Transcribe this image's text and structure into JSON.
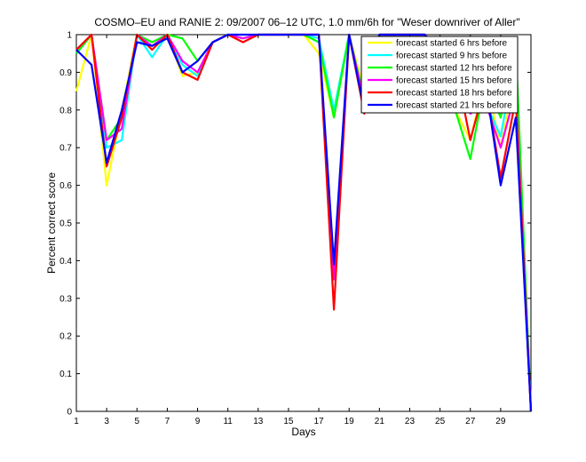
{
  "chart_data": {
    "type": "line",
    "title": "COSMO–EU and RANIE 2: 09/2007 06–12 UTC, 1.0 mm/6h for \"Weser downriver of Aller\"",
    "xlabel": "Days",
    "ylabel": "Percent correct score",
    "xlim": [
      1,
      31
    ],
    "ylim": [
      0,
      1
    ],
    "x_ticks": [
      "1",
      "3",
      "5",
      "7",
      "9",
      "11",
      "13",
      "15",
      "17",
      "19",
      "21",
      "23",
      "25",
      "27",
      "29"
    ],
    "y_ticks": [
      "0",
      "0.1",
      "0.2",
      "0.3",
      "0.4",
      "0.5",
      "0.6",
      "0.7",
      "0.8",
      "0.9",
      "1"
    ],
    "grid": false,
    "legend_position": "top-right",
    "x": [
      1,
      2,
      3,
      4,
      5,
      6,
      7,
      8,
      9,
      10,
      11,
      12,
      13,
      14,
      15,
      16,
      17,
      18,
      19,
      20,
      21,
      22,
      23,
      24,
      25,
      26,
      27,
      28,
      29,
      30,
      31
    ],
    "series": [
      {
        "name": "forecast started 6 hrs before",
        "color": "#ffff00",
        "values": [
          0.85,
          1.0,
          0.6,
          0.8,
          1.0,
          0.97,
          1.0,
          0.89,
          0.9,
          0.98,
          1.0,
          0.99,
          1.0,
          1.0,
          1.0,
          1.0,
          0.95,
          0.78,
          1.0,
          0.85,
          1.0,
          1.0,
          1.0,
          1.0,
          0.95,
          0.8,
          0.72,
          0.89,
          0.7,
          0.9,
          0.0
        ]
      },
      {
        "name": "forecast started 9 hrs before",
        "color": "#00ffff",
        "values": [
          0.95,
          1.0,
          0.7,
          0.72,
          1.0,
          0.94,
          1.0,
          0.92,
          0.89,
          0.98,
          1.0,
          0.99,
          1.0,
          1.0,
          1.0,
          1.0,
          0.99,
          0.8,
          1.0,
          0.83,
          1.0,
          1.0,
          1.0,
          1.0,
          0.93,
          0.86,
          0.85,
          0.82,
          0.73,
          0.95,
          0.0
        ]
      },
      {
        "name": "forecast started 12 hrs before",
        "color": "#00ff00",
        "values": [
          0.95,
          1.0,
          0.72,
          0.78,
          1.0,
          0.98,
          1.0,
          0.99,
          0.93,
          0.98,
          1.0,
          0.99,
          1.0,
          1.0,
          1.0,
          1.0,
          0.98,
          0.78,
          1.0,
          0.83,
          1.0,
          1.0,
          1.0,
          1.0,
          0.93,
          0.8,
          0.67,
          0.88,
          0.78,
          0.97,
          0.0
        ]
      },
      {
        "name": "forecast started 15 hrs before",
        "color": "#ff00ff",
        "values": [
          0.96,
          1.0,
          0.72,
          0.75,
          1.0,
          0.97,
          1.0,
          0.93,
          0.9,
          0.98,
          1.0,
          0.99,
          1.0,
          1.0,
          1.0,
          1.0,
          1.0,
          0.35,
          1.0,
          0.82,
          1.0,
          1.0,
          1.0,
          1.0,
          0.94,
          0.9,
          0.79,
          0.82,
          0.7,
          0.85,
          0.0
        ]
      },
      {
        "name": "forecast started 18 hrs before",
        "color": "#ff0000",
        "values": [
          0.96,
          1.0,
          0.65,
          0.78,
          1.0,
          0.96,
          1.0,
          0.9,
          0.88,
          0.98,
          1.0,
          0.98,
          1.0,
          1.0,
          1.0,
          1.0,
          1.0,
          0.27,
          1.0,
          0.79,
          1.0,
          1.0,
          1.0,
          1.0,
          0.95,
          0.92,
          0.72,
          0.87,
          0.62,
          0.83,
          0.0
        ]
      },
      {
        "name": "forecast started 21 hrs before",
        "color": "#0000ff",
        "values": [
          0.96,
          0.92,
          0.66,
          0.8,
          0.98,
          0.97,
          0.99,
          0.9,
          0.93,
          0.98,
          1.0,
          1.0,
          1.0,
          1.0,
          1.0,
          1.0,
          1.0,
          0.39,
          1.0,
          0.8,
          1.0,
          1.0,
          1.0,
          1.0,
          0.95,
          0.97,
          0.89,
          0.87,
          0.6,
          0.78,
          0.0
        ]
      }
    ]
  }
}
